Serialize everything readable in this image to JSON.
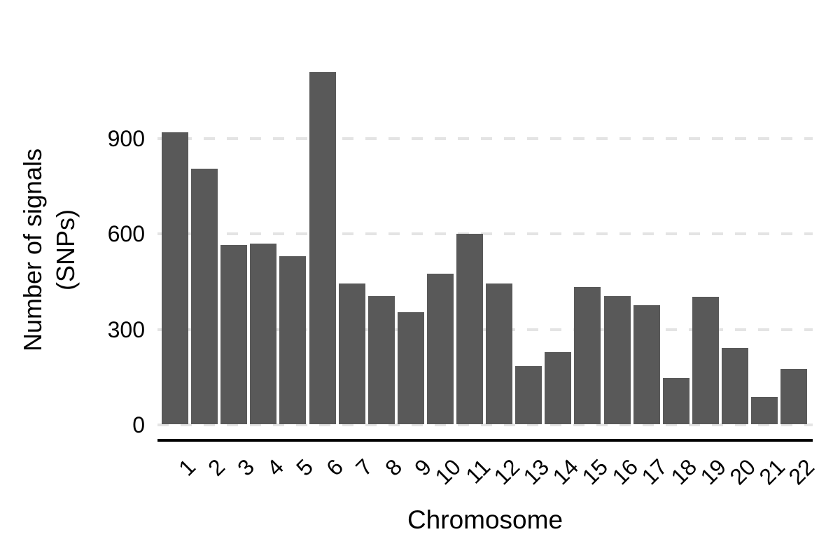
{
  "chart_data": {
    "type": "bar",
    "title": "",
    "xlabel": "Chromosome",
    "ylabel_line1": "Number of signals",
    "ylabel_line2": "(SNPs)",
    "categories": [
      "1",
      "2",
      "3",
      "4",
      "5",
      "6",
      "7",
      "8",
      "9",
      "10",
      "11",
      "12",
      "13",
      "14",
      "15",
      "16",
      "17",
      "18",
      "19",
      "20",
      "21",
      "22"
    ],
    "values": [
      920,
      805,
      565,
      570,
      530,
      1110,
      445,
      405,
      355,
      475,
      600,
      445,
      185,
      228,
      433,
      405,
      377,
      147,
      403,
      242,
      89,
      177
    ],
    "yticks": [
      0,
      300,
      600,
      900
    ],
    "ytick_labels": [
      "0",
      "300",
      "600",
      "900"
    ],
    "ylim": [
      0,
      1200
    ],
    "grid": "horizontal dashed major gridlines at yticks, no vertical grid, no minor grid",
    "legend": "none",
    "bar_color": "#595959",
    "gridline_color": "#e4e4e4",
    "axis_line_color": "#000000",
    "text_color": "#000000"
  }
}
